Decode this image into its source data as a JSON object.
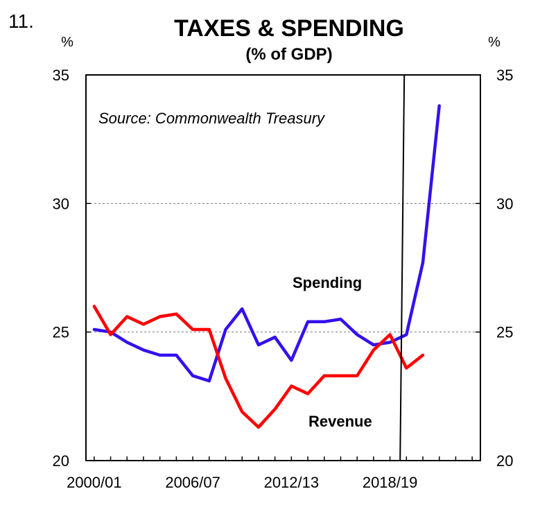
{
  "figure_number": "11.",
  "chart_data": {
    "type": "line",
    "title": "TAXES & SPENDING",
    "subtitle": "(% of GDP)",
    "source_note": "Source: Commonwealth Treasury",
    "left_axis_unit": "%",
    "right_axis_unit": "%",
    "ylim": [
      20,
      35
    ],
    "yticks": [
      20,
      25,
      30,
      35
    ],
    "ytick_labels": [
      "20",
      "25",
      "30",
      "35"
    ],
    "x_labels": [
      "2000/01",
      "2006/07",
      "2012/13",
      "2018/19"
    ],
    "x_label_years": [
      2000,
      2006,
      2012,
      2018
    ],
    "xlim": [
      1999.5,
      2023.5
    ],
    "gridlines": [
      25,
      30
    ],
    "marker_year": 2018.7,
    "series": [
      {
        "name": "Spending",
        "color": "#3311ee",
        "label": "Spending",
        "x": [
          2000,
          2001,
          2002,
          2003,
          2004,
          2005,
          2006,
          2007,
          2008,
          2009,
          2010,
          2011,
          2012,
          2013,
          2014,
          2015,
          2016,
          2017,
          2018,
          2019,
          2020,
          2021
        ],
        "values": [
          25.1,
          25.0,
          24.6,
          24.3,
          24.1,
          24.1,
          23.3,
          23.1,
          25.1,
          25.9,
          24.5,
          24.8,
          23.9,
          25.4,
          25.4,
          25.5,
          24.9,
          24.5,
          24.6,
          24.9,
          27.7,
          33.8
        ]
      },
      {
        "name": "Revenue",
        "color": "#ff0000",
        "label": "Revenue",
        "x": [
          2000,
          2001,
          2002,
          2003,
          2004,
          2005,
          2006,
          2007,
          2008,
          2009,
          2010,
          2011,
          2012,
          2013,
          2014,
          2015,
          2016,
          2017,
          2018,
          2019,
          2020,
          2021
        ],
        "values": [
          26.0,
          24.9,
          25.6,
          25.3,
          25.6,
          25.7,
          25.1,
          25.1,
          23.2,
          21.9,
          21.3,
          22.0,
          22.9,
          22.6,
          23.3,
          23.3,
          23.3,
          24.3,
          24.9,
          23.6,
          24.1,
          null
        ]
      }
    ]
  }
}
